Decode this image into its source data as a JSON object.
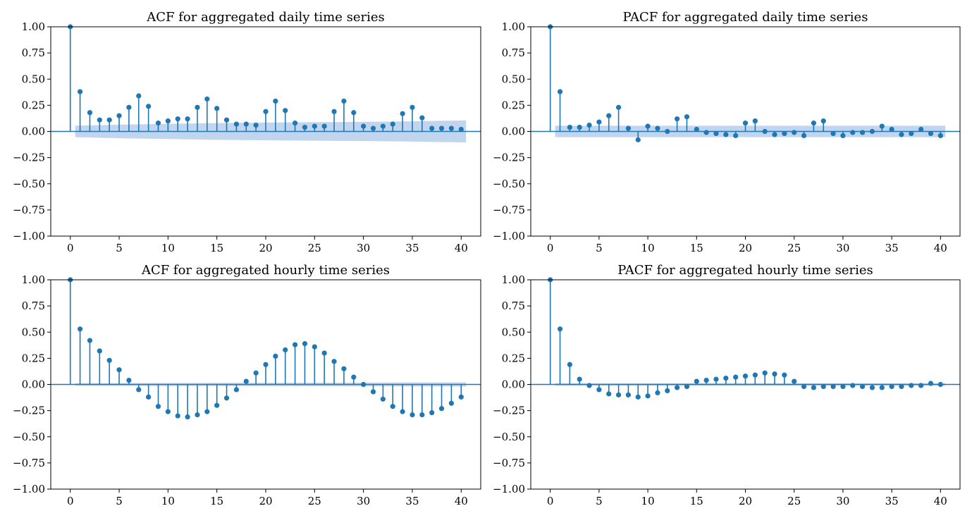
{
  "chart_data": [
    {
      "type": "stem",
      "title": "ACF for aggregated daily time series",
      "xlabel": "",
      "ylabel": "",
      "xlim": [
        -2,
        42
      ],
      "ylim": [
        -1.0,
        1.0
      ],
      "xticks": [
        "0",
        "5",
        "10",
        "15",
        "20",
        "25",
        "30",
        "35",
        "40"
      ],
      "yticks": [
        "1.00",
        "0.75",
        "0.50",
        "0.25",
        "0.00",
        "−0.25",
        "−0.50",
        "−0.75",
        "−1.00"
      ],
      "grid": false,
      "lags": [
        0,
        1,
        2,
        3,
        4,
        5,
        6,
        7,
        8,
        9,
        10,
        11,
        12,
        13,
        14,
        15,
        16,
        17,
        18,
        19,
        20,
        21,
        22,
        23,
        24,
        25,
        26,
        27,
        28,
        29,
        30,
        31,
        32,
        33,
        34,
        35,
        36,
        37,
        38,
        39,
        40
      ],
      "values": [
        1.0,
        0.38,
        0.18,
        0.11,
        0.11,
        0.15,
        0.23,
        0.34,
        0.24,
        0.08,
        0.1,
        0.12,
        0.12,
        0.23,
        0.31,
        0.22,
        0.11,
        0.07,
        0.07,
        0.06,
        0.19,
        0.29,
        0.2,
        0.08,
        0.04,
        0.05,
        0.05,
        0.19,
        0.29,
        0.18,
        0.05,
        0.03,
        0.05,
        0.07,
        0.17,
        0.23,
        0.13,
        0.03,
        0.03,
        0.03,
        0.02
      ],
      "confidence_band": [
        [
          1,
          0.055
        ],
        [
          5,
          0.065
        ],
        [
          10,
          0.072
        ],
        [
          15,
          0.08
        ],
        [
          20,
          0.085
        ],
        [
          25,
          0.088
        ],
        [
          30,
          0.092
        ],
        [
          35,
          0.097
        ],
        [
          40,
          0.105
        ]
      ]
    },
    {
      "type": "stem",
      "title": "PACF for aggregated daily time series",
      "xlabel": "",
      "ylabel": "",
      "xlim": [
        -2,
        42
      ],
      "ylim": [
        -1.0,
        1.0
      ],
      "xticks": [
        "0",
        "5",
        "10",
        "15",
        "20",
        "25",
        "30",
        "35",
        "40"
      ],
      "yticks": [
        "1.00",
        "0.75",
        "0.50",
        "0.25",
        "0.00",
        "−0.25",
        "−0.50",
        "−0.75",
        "−1.00"
      ],
      "grid": false,
      "lags": [
        0,
        1,
        2,
        3,
        4,
        5,
        6,
        7,
        8,
        9,
        10,
        11,
        12,
        13,
        14,
        15,
        16,
        17,
        18,
        19,
        20,
        21,
        22,
        23,
        24,
        25,
        26,
        27,
        28,
        29,
        30,
        31,
        32,
        33,
        34,
        35,
        36,
        37,
        38,
        39,
        40
      ],
      "values": [
        1.0,
        0.38,
        0.04,
        0.04,
        0.06,
        0.09,
        0.15,
        0.23,
        0.03,
        -0.08,
        0.05,
        0.03,
        0.0,
        0.12,
        0.14,
        0.02,
        -0.01,
        -0.02,
        -0.03,
        -0.04,
        0.08,
        0.1,
        0.0,
        -0.03,
        -0.02,
        -0.01,
        -0.04,
        0.08,
        0.1,
        -0.02,
        -0.04,
        -0.01,
        -0.01,
        0.0,
        0.05,
        0.02,
        -0.03,
        -0.02,
        0.02,
        -0.02,
        -0.04
      ],
      "confidence_band": [
        [
          1,
          0.055
        ],
        [
          40,
          0.055
        ]
      ]
    },
    {
      "type": "stem",
      "title": "ACF for aggregated hourly time series",
      "xlabel": "",
      "ylabel": "",
      "xlim": [
        -2,
        42
      ],
      "ylim": [
        -1.0,
        1.0
      ],
      "xticks": [
        "0",
        "5",
        "10",
        "15",
        "20",
        "25",
        "30",
        "35",
        "40"
      ],
      "yticks": [
        "1.00",
        "0.75",
        "0.50",
        "0.25",
        "0.00",
        "−0.25",
        "−0.50",
        "−0.75",
        "−1.00"
      ],
      "grid": false,
      "lags": [
        0,
        1,
        2,
        3,
        4,
        5,
        6,
        7,
        8,
        9,
        10,
        11,
        12,
        13,
        14,
        15,
        16,
        17,
        18,
        19,
        20,
        21,
        22,
        23,
        24,
        25,
        26,
        27,
        28,
        29,
        30,
        31,
        32,
        33,
        34,
        35,
        36,
        37,
        38,
        39,
        40
      ],
      "values": [
        1.0,
        0.53,
        0.42,
        0.32,
        0.23,
        0.14,
        0.04,
        -0.05,
        -0.12,
        -0.21,
        -0.26,
        -0.3,
        -0.31,
        -0.29,
        -0.26,
        -0.2,
        -0.13,
        -0.05,
        0.03,
        0.11,
        0.19,
        0.27,
        0.33,
        0.38,
        0.39,
        0.36,
        0.3,
        0.22,
        0.15,
        0.07,
        0.0,
        -0.07,
        -0.14,
        -0.21,
        -0.26,
        -0.29,
        -0.29,
        -0.27,
        -0.23,
        -0.18,
        -0.12
      ],
      "confidence_band": [
        [
          1,
          0.012
        ],
        [
          40,
          0.02
        ]
      ]
    },
    {
      "type": "stem",
      "title": "PACF for aggregated hourly time series",
      "xlabel": "",
      "ylabel": "",
      "xlim": [
        -2,
        42
      ],
      "ylim": [
        -1.0,
        1.0
      ],
      "xticks": [
        "0",
        "5",
        "10",
        "15",
        "20",
        "25",
        "30",
        "35",
        "40"
      ],
      "yticks": [
        "1.00",
        "0.75",
        "0.50",
        "0.25",
        "0.00",
        "−0.25",
        "−0.50",
        "−0.75",
        "−1.00"
      ],
      "grid": false,
      "lags": [
        0,
        1,
        2,
        3,
        4,
        5,
        6,
        7,
        8,
        9,
        10,
        11,
        12,
        13,
        14,
        15,
        16,
        17,
        18,
        19,
        20,
        21,
        22,
        23,
        24,
        25,
        26,
        27,
        28,
        29,
        30,
        31,
        32,
        33,
        34,
        35,
        36,
        37,
        38,
        39,
        40
      ],
      "values": [
        1.0,
        0.53,
        0.19,
        0.05,
        -0.01,
        -0.05,
        -0.09,
        -0.1,
        -0.1,
        -0.12,
        -0.11,
        -0.08,
        -0.06,
        -0.03,
        -0.02,
        0.03,
        0.04,
        0.05,
        0.06,
        0.07,
        0.08,
        0.09,
        0.11,
        0.1,
        0.09,
        0.03,
        -0.02,
        -0.03,
        -0.02,
        -0.02,
        -0.02,
        -0.01,
        -0.02,
        -0.03,
        -0.03,
        -0.02,
        -0.02,
        -0.01,
        -0.01,
        0.01,
        0.0
      ],
      "confidence_band": [
        [
          1,
          0.012
        ],
        [
          40,
          0.012
        ]
      ]
    }
  ],
  "colors": {
    "stem": "#1f77b4",
    "confidence_band": "#aec7e8",
    "axes": "#000000",
    "background": "#ffffff"
  }
}
